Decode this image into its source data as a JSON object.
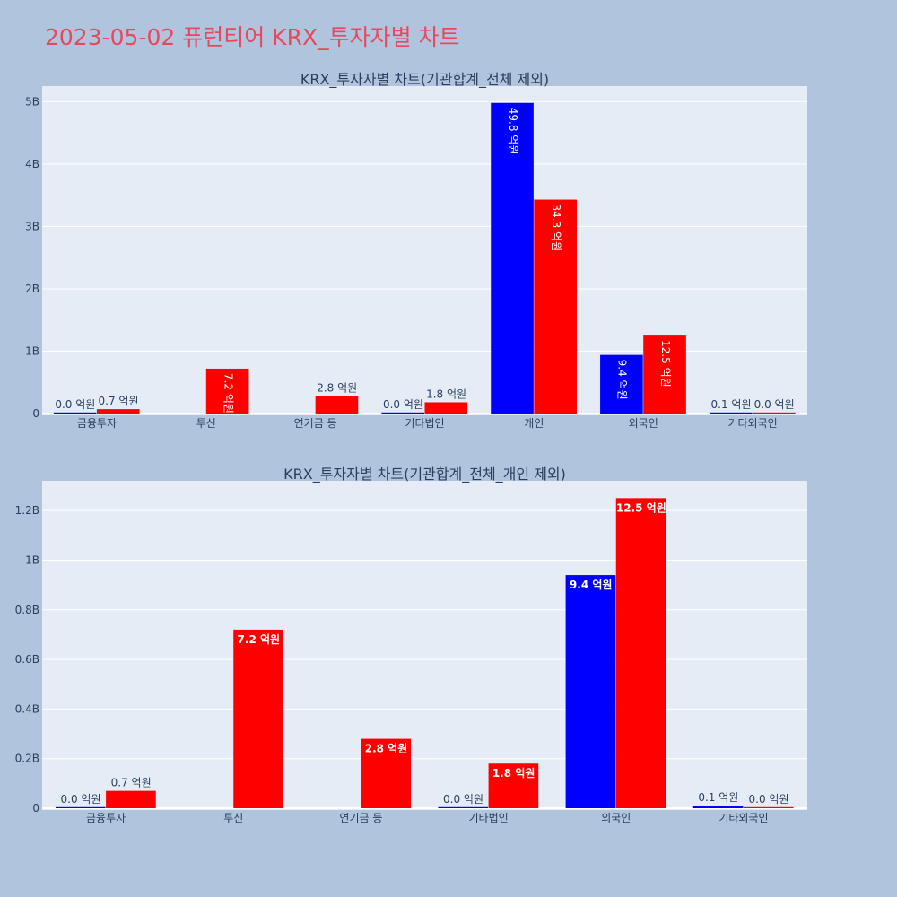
{
  "title": "2023-05-02 퓨런티어 KRX_투자자별 차트",
  "colors": {
    "background": "#b0c4de",
    "plot_bg": "#e5ecf6",
    "title": "#e8485e",
    "buy": "#0000ff",
    "sell": "#ff0000"
  },
  "chart_data": [
    {
      "type": "bar",
      "title": "KRX_투자자별 차트(기관합계_전체 제외)",
      "categories": [
        "금융투자",
        "투신",
        "연기금 등",
        "기타법인",
        "개인",
        "외국인",
        "기타외국인"
      ],
      "yticks": [
        {
          "value": 0,
          "label": "0"
        },
        {
          "value": 1000000000,
          "label": "1B"
        },
        {
          "value": 2000000000,
          "label": "2B"
        },
        {
          "value": 3000000000,
          "label": "3B"
        },
        {
          "value": 4000000000,
          "label": "4B"
        },
        {
          "value": 5000000000,
          "label": "5B"
        }
      ],
      "ylim": [
        0,
        5250000000
      ],
      "series": [
        {
          "color": "#0000ff",
          "values": [
            0,
            null,
            null,
            0,
            4980000000,
            940000000,
            10000000
          ],
          "labels": [
            "0.0 억원",
            "",
            "",
            "0.0 억원",
            "49.8 억원",
            "9.4 억원",
            "0.1 억원"
          ]
        },
        {
          "color": "#ff0000",
          "values": [
            70000000,
            720000000,
            280000000,
            180000000,
            3430000000,
            1250000000,
            0
          ],
          "labels": [
            "0.7 억원",
            "7.2 억원",
            "2.8 억원",
            "1.8 억원",
            "34.3 억원",
            "12.5 억원",
            "0.0 억원"
          ]
        }
      ]
    },
    {
      "type": "bar",
      "title": "KRX_투자자별 차트(기관합계_전체_개인 제외)",
      "categories": [
        "금융투자",
        "투신",
        "연기금 등",
        "기타법인",
        "외국인",
        "기타외국인"
      ],
      "yticks": [
        {
          "value": 0,
          "label": "0"
        },
        {
          "value": 200000000,
          "label": "0.2B"
        },
        {
          "value": 400000000,
          "label": "0.4B"
        },
        {
          "value": 600000000,
          "label": "0.6B"
        },
        {
          "value": 800000000,
          "label": "0.8B"
        },
        {
          "value": 1000000000,
          "label": "1B"
        },
        {
          "value": 1200000000,
          "label": "1.2B"
        }
      ],
      "ylim": [
        0,
        1320000000
      ],
      "series": [
        {
          "color": "#0000ff",
          "values": [
            0,
            null,
            null,
            0,
            940000000,
            10000000
          ],
          "labels": [
            "0.0 억원",
            "",
            "",
            "0.0 억원",
            "9.4 억원",
            "0.1 억원"
          ]
        },
        {
          "color": "#ff0000",
          "values": [
            70000000,
            720000000,
            280000000,
            180000000,
            1250000000,
            0
          ],
          "labels": [
            "0.7 억원",
            "7.2 억원",
            "2.8 억원",
            "1.8 억원",
            "12.5 억원",
            "0.0 억원"
          ]
        }
      ]
    }
  ]
}
